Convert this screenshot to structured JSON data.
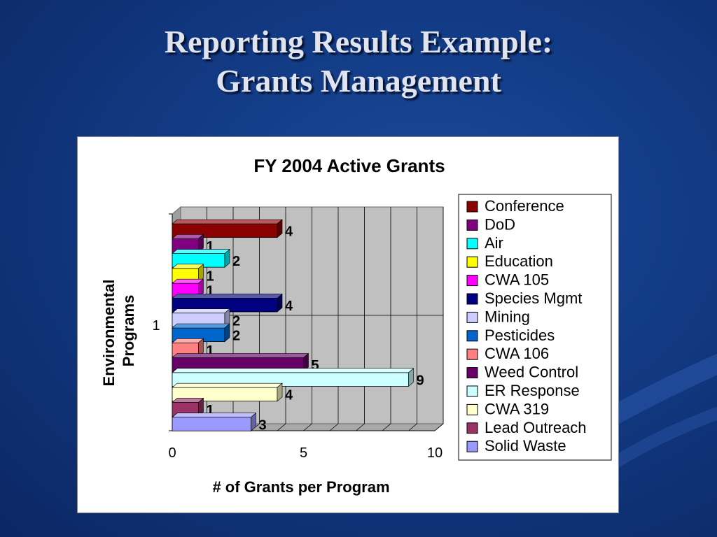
{
  "slide": {
    "title_line1": "Reporting Results Example:",
    "title_line2": "Grants Management"
  },
  "colors": {
    "background": "#123a84",
    "title": "#dfe4ee",
    "plot_wall": "#c0c0c0"
  },
  "chart_data": {
    "type": "bar",
    "orientation": "horizontal",
    "title": "FY 2004 Active Grants",
    "xlabel": "# of Grants per Program",
    "ylabel": "Environmental Programs",
    "category_label": "1",
    "xlim": [
      0,
      10
    ],
    "xticks": [
      "0",
      "5",
      "10"
    ],
    "legend_position": "right",
    "grid": true,
    "series": [
      {
        "name": "Conference",
        "value": 4,
        "color": "#8b0000"
      },
      {
        "name": "DoD",
        "value": 1,
        "color": "#800080"
      },
      {
        "name": "Air",
        "value": 2,
        "color": "#00ffff"
      },
      {
        "name": "Education",
        "value": 1,
        "color": "#ffff00"
      },
      {
        "name": "CWA 105",
        "value": 1,
        "color": "#ff00ff"
      },
      {
        "name": "Species Mgmt",
        "value": 4,
        "color": "#000080"
      },
      {
        "name": "Mining",
        "value": 2,
        "color": "#ccccff"
      },
      {
        "name": "Pesticides",
        "value": 2,
        "color": "#0066cc"
      },
      {
        "name": "CWA 106",
        "value": 1,
        "color": "#ff8080"
      },
      {
        "name": "Weed Control",
        "value": 5,
        "color": "#660066"
      },
      {
        "name": "ER Response",
        "value": 9,
        "color": "#ccffff"
      },
      {
        "name": "CWA 319",
        "value": 4,
        "color": "#ffffcc"
      },
      {
        "name": "Lead Outreach",
        "value": 1,
        "color": "#993366"
      },
      {
        "name": "Solid Waste",
        "value": 3,
        "color": "#9999ff"
      }
    ]
  }
}
